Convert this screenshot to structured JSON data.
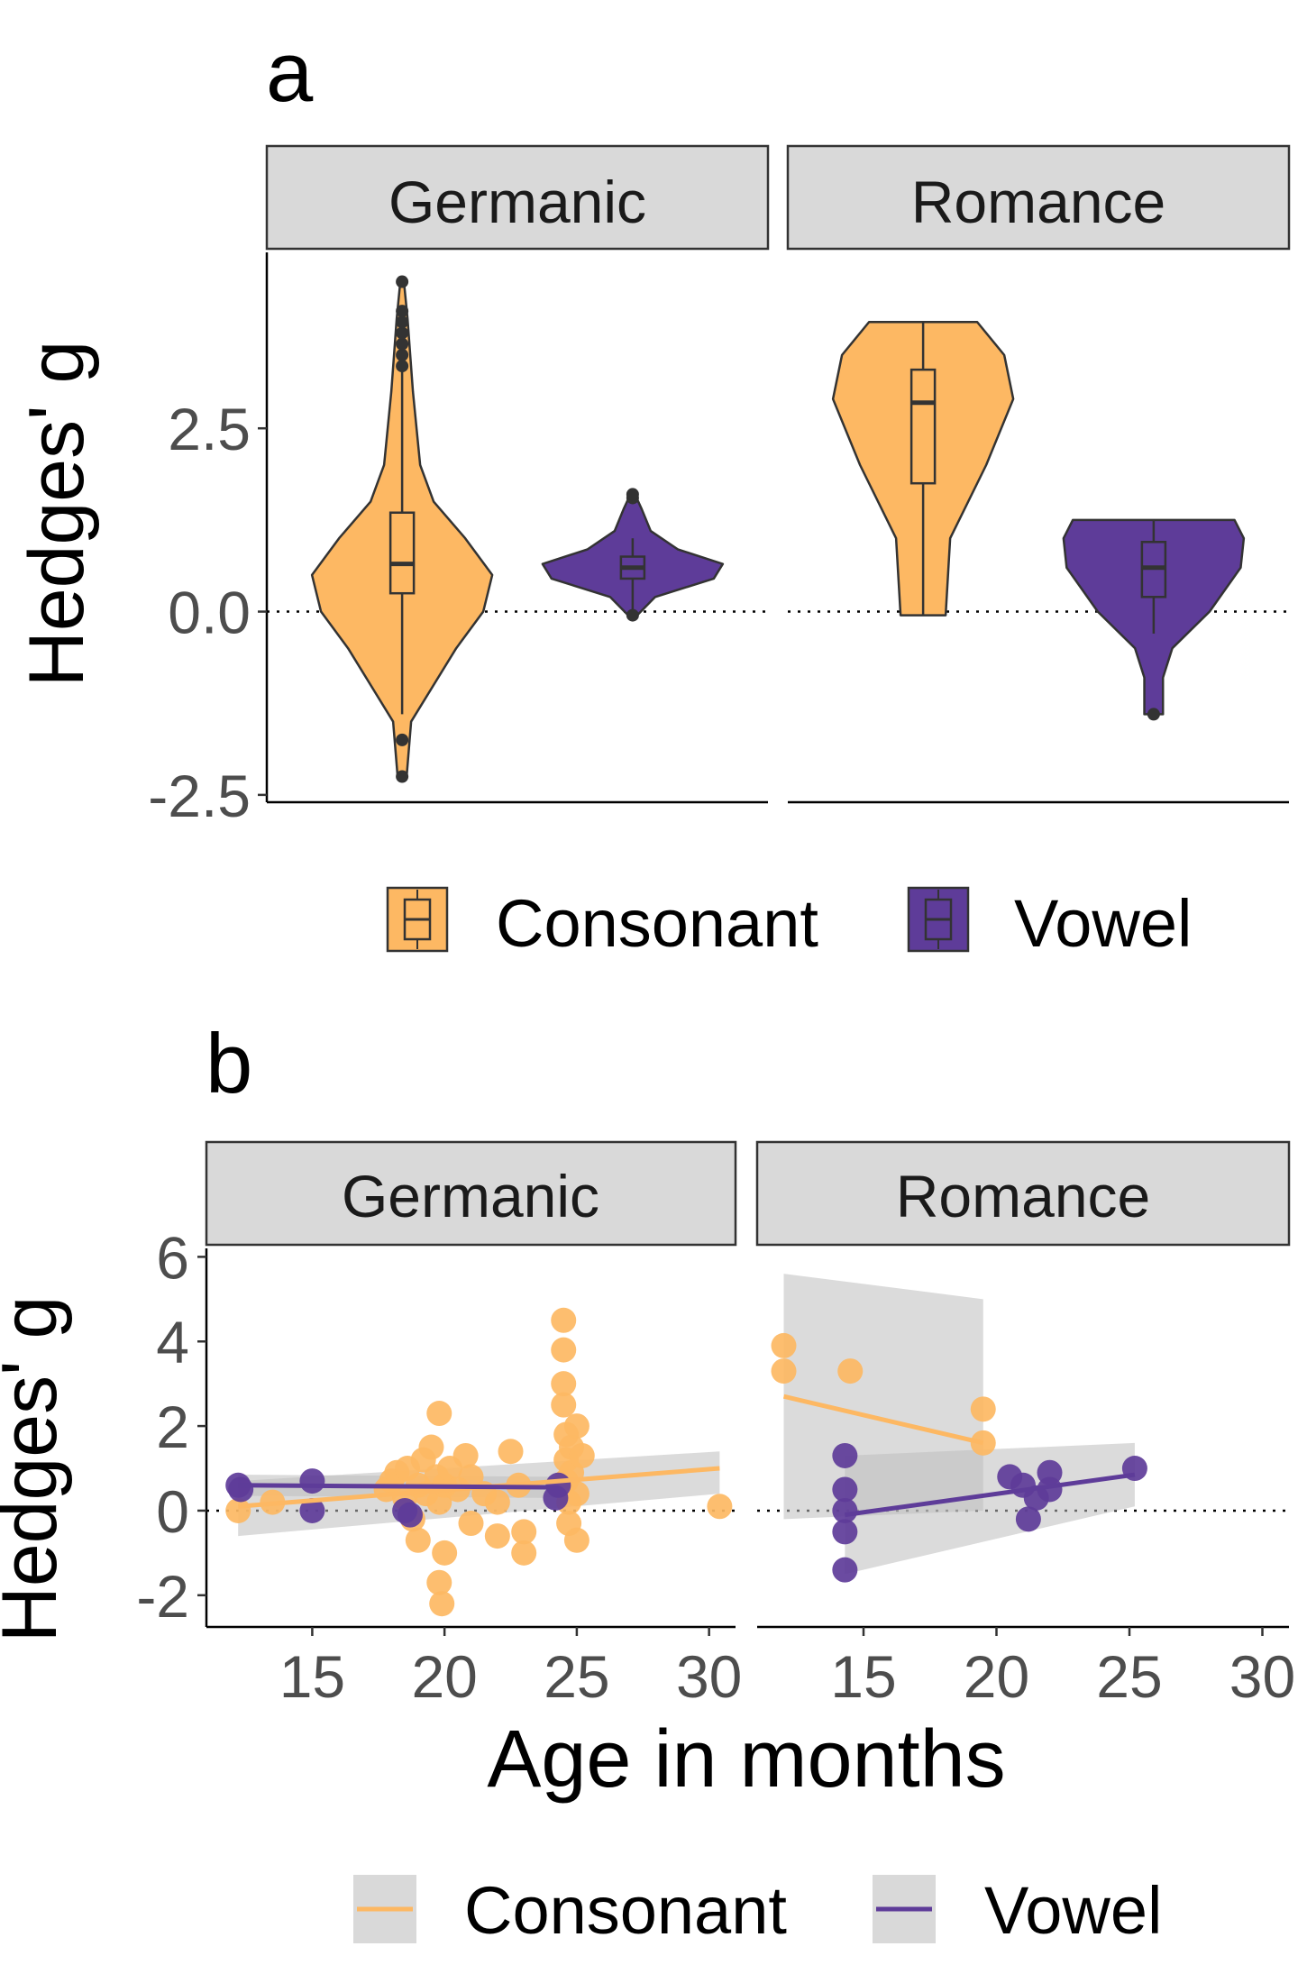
{
  "colors": {
    "consonant": "#FDB863",
    "vowel": "#5E3C99",
    "strip_fill": "#D9D9D9",
    "ribbon": "#BEBEBE",
    "outline": "#333333"
  },
  "chart_data": [
    {
      "panel_label": "a",
      "type": "violin",
      "facets": [
        "Germanic",
        "Romance"
      ],
      "ylabel": "Hedges' g",
      "xlabel": "",
      "ylim": [
        -2.6,
        4.9
      ],
      "yticks": [
        -2.5,
        0.0,
        2.5
      ],
      "ytick_labels": [
        "-2.5",
        "0.0",
        "2.5"
      ],
      "reference_line": 0,
      "legend": {
        "position": "bottom",
        "entries": [
          "Consonant",
          "Vowel"
        ]
      },
      "groups": [
        {
          "facet": "Germanic",
          "series": "Consonant",
          "x": 0.27,
          "y_min": -2.25,
          "y_max": 4.5,
          "box": {
            "q1": 0.25,
            "median": 0.65,
            "q3": 1.35,
            "whisker_low": -1.4,
            "whisker_high": 3.3
          },
          "outliers": [
            -2.25,
            -1.75,
            3.35,
            3.5,
            3.65,
            3.8,
            3.95,
            4.1,
            4.5
          ],
          "density": [
            [
              -2.25,
              0.005
            ],
            [
              -1.5,
              0.01
            ],
            [
              -0.5,
              0.06
            ],
            [
              0.0,
              0.09
            ],
            [
              0.5,
              0.1
            ],
            [
              1.0,
              0.07
            ],
            [
              1.5,
              0.035
            ],
            [
              2.0,
              0.02
            ],
            [
              3.0,
              0.012
            ],
            [
              4.0,
              0.006
            ],
            [
              4.5,
              0.002
            ]
          ]
        },
        {
          "facet": "Germanic",
          "series": "Vowel",
          "x": 0.73,
          "y_min": -0.05,
          "y_max": 1.6,
          "box": {
            "q1": 0.45,
            "median": 0.6,
            "q3": 0.75,
            "whisker_low": 0.0,
            "whisker_high": 1.0
          },
          "outliers": [
            -0.05,
            1.55,
            1.6
          ],
          "density": [
            [
              -0.05,
              0.01
            ],
            [
              0.2,
              0.05
            ],
            [
              0.45,
              0.18
            ],
            [
              0.65,
              0.2
            ],
            [
              0.85,
              0.1
            ],
            [
              1.1,
              0.04
            ],
            [
              1.4,
              0.02
            ],
            [
              1.6,
              0.005
            ]
          ]
        },
        {
          "facet": "Romance",
          "series": "Consonant",
          "x": 0.27,
          "y_min": -0.05,
          "y_max": 3.95,
          "box": {
            "q1": 1.75,
            "median": 2.85,
            "q3": 3.3,
            "whisker_low": -0.05,
            "whisker_high": 3.95
          },
          "outliers": [],
          "density": [
            [
              -0.05,
              0.025
            ],
            [
              1.0,
              0.03
            ],
            [
              2.0,
              0.07
            ],
            [
              2.9,
              0.1
            ],
            [
              3.5,
              0.09
            ],
            [
              3.95,
              0.06
            ]
          ]
        },
        {
          "facet": "Romance",
          "series": "Vowel",
          "x": 0.73,
          "y_min": -1.4,
          "y_max": 1.25,
          "box": {
            "q1": 0.2,
            "median": 0.6,
            "q3": 0.95,
            "whisker_low": -0.3,
            "whisker_high": 1.25
          },
          "outliers": [
            -1.4
          ],
          "density": [
            [
              -1.4,
              0.015
            ],
            [
              -0.9,
              0.015
            ],
            [
              -0.5,
              0.03
            ],
            [
              0.0,
              0.09
            ],
            [
              0.6,
              0.14
            ],
            [
              1.0,
              0.145
            ],
            [
              1.25,
              0.13
            ]
          ]
        }
      ]
    },
    {
      "panel_label": "b",
      "type": "scatter",
      "facets": [
        "Germanic",
        "Romance"
      ],
      "xlabel": "Age in months",
      "ylabel": "Hedges' g",
      "xlim": [
        11,
        31
      ],
      "ylim": [
        -2.75,
        6.2
      ],
      "xticks": [
        15,
        20,
        25,
        30
      ],
      "yticks": [
        -2,
        0,
        2,
        4,
        6
      ],
      "reference_line": 0,
      "legend": {
        "position": "bottom",
        "entries": [
          "Consonant",
          "Vowel"
        ]
      },
      "series": [
        {
          "name": "Consonant",
          "facet": "Germanic",
          "points": [
            [
              12.2,
              0.0
            ],
            [
              13.5,
              0.2
            ],
            [
              17.8,
              0.5
            ],
            [
              18.0,
              0.7
            ],
            [
              18.2,
              0.9
            ],
            [
              18.5,
              0.3
            ],
            [
              18.6,
              1.0
            ],
            [
              18.8,
              -0.2
            ],
            [
              19.0,
              0.6
            ],
            [
              19.0,
              -0.7
            ],
            [
              19.2,
              1.2
            ],
            [
              19.3,
              0.4
            ],
            [
              19.5,
              1.5
            ],
            [
              19.7,
              0.8
            ],
            [
              19.8,
              2.3
            ],
            [
              19.8,
              0.2
            ],
            [
              19.8,
              -1.7
            ],
            [
              19.9,
              -2.2
            ],
            [
              20.0,
              0.6
            ],
            [
              20.0,
              -1.0
            ],
            [
              20.2,
              1.0
            ],
            [
              20.5,
              0.5
            ],
            [
              20.8,
              1.3
            ],
            [
              21.0,
              -0.3
            ],
            [
              21.0,
              0.8
            ],
            [
              21.5,
              0.4
            ],
            [
              22.0,
              -0.6
            ],
            [
              22.0,
              0.2
            ],
            [
              22.5,
              1.4
            ],
            [
              22.8,
              0.6
            ],
            [
              23.0,
              -0.5
            ],
            [
              23.0,
              -1.0
            ],
            [
              24.5,
              4.5
            ],
            [
              24.5,
              3.8
            ],
            [
              24.5,
              3.0
            ],
            [
              24.5,
              2.5
            ],
            [
              24.6,
              1.8
            ],
            [
              24.6,
              1.2
            ],
            [
              24.6,
              0.7
            ],
            [
              24.7,
              0.2
            ],
            [
              24.7,
              -0.3
            ],
            [
              24.8,
              1.5
            ],
            [
              24.8,
              0.9
            ],
            [
              25.0,
              -0.7
            ],
            [
              25.0,
              0.4
            ],
            [
              25.2,
              1.3
            ],
            [
              25.0,
              2.0
            ],
            [
              30.4,
              0.1
            ]
          ],
          "fit": {
            "x": [
              12.2,
              30.4
            ],
            "y": [
              0.1,
              1.0
            ],
            "ci_low": [
              -0.6,
              0.4
            ],
            "ci_high": [
              0.7,
              1.4
            ]
          }
        },
        {
          "name": "Vowel",
          "facet": "Germanic",
          "points": [
            [
              12.2,
              0.6
            ],
            [
              12.3,
              0.5
            ],
            [
              15.0,
              0.7
            ],
            [
              15.0,
              0.0
            ],
            [
              18.5,
              0.0
            ],
            [
              18.7,
              -0.1
            ],
            [
              24.2,
              0.3
            ],
            [
              24.3,
              0.6
            ]
          ],
          "fit": {
            "x": [
              12.2,
              24.3
            ],
            "y": [
              0.6,
              0.55
            ],
            "ci_low": [
              0.35,
              0.3
            ],
            "ci_high": [
              0.85,
              0.8
            ]
          }
        },
        {
          "name": "Consonant",
          "facet": "Romance",
          "points": [
            [
              12.0,
              3.9
            ],
            [
              12.0,
              3.3
            ],
            [
              14.5,
              3.3
            ],
            [
              19.5,
              2.4
            ],
            [
              19.5,
              1.6
            ]
          ],
          "fit": {
            "x": [
              12.0,
              19.5
            ],
            "y": [
              2.7,
              1.6
            ],
            "ci_low": [
              -0.2,
              0.0
            ],
            "ci_high": [
              5.6,
              5.0
            ]
          }
        },
        {
          "name": "Vowel",
          "facet": "Romance",
          "points": [
            [
              14.3,
              1.3
            ],
            [
              14.3,
              0.5
            ],
            [
              14.3,
              0.0
            ],
            [
              14.3,
              -0.5
            ],
            [
              14.3,
              -1.4
            ],
            [
              20.5,
              0.8
            ],
            [
              21.0,
              0.6
            ],
            [
              21.5,
              0.3
            ],
            [
              21.2,
              -0.2
            ],
            [
              22.0,
              0.9
            ],
            [
              22.0,
              0.5
            ],
            [
              25.2,
              1.0
            ]
          ],
          "fit": {
            "x": [
              14.3,
              25.2
            ],
            "y": [
              -0.1,
              0.85
            ],
            "ci_low": [
              -1.5,
              0.1
            ],
            "ci_high": [
              1.3,
              1.6
            ]
          }
        }
      ]
    }
  ]
}
